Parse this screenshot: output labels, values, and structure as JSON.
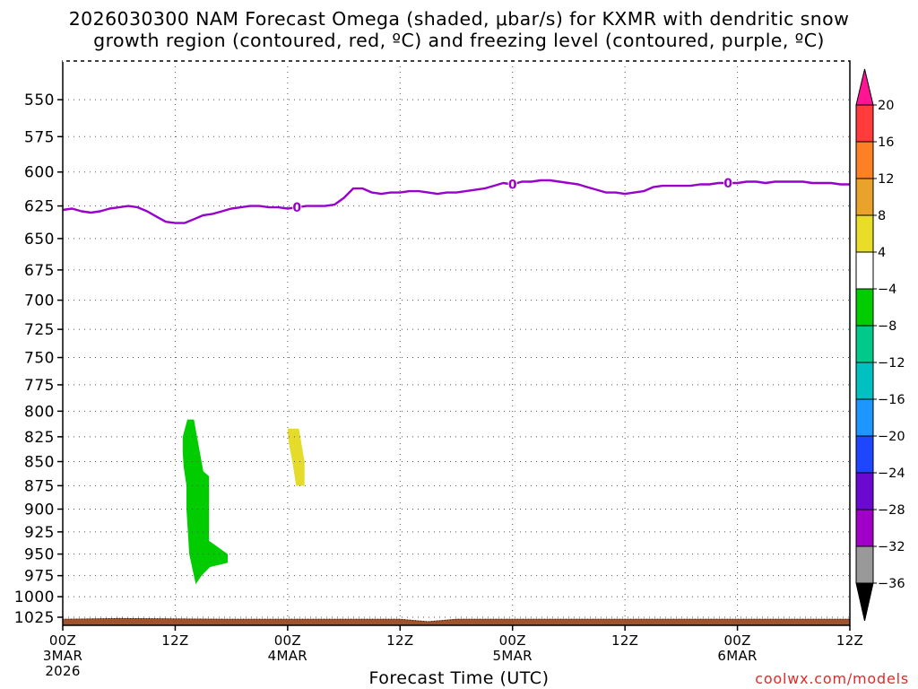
{
  "title": {
    "line1": "2026030300 NAM Forecast Omega (shaded, μbar/s) for KXMR with dendritic snow",
    "line2": "growth region (contoured, red, ºC) and freezing level (contoured, purple, ºC)"
  },
  "credit": "coolwx.com/models",
  "chart_data": {
    "type": "contour",
    "title": "2026030300 NAM Forecast Omega (shaded, μbar/s) for KXMR with dendritic snow growth region (contoured, red, ºC) and freezing level (contoured, purple, ºC)",
    "xlabel": "Forecast Time (UTC)",
    "ylabel": "",
    "xlim": [
      0,
      84
    ],
    "ylim_hpa": [
      525,
      1035
    ],
    "y_scale": "log-pressure (inverted)",
    "grid": true,
    "y_ticks": [
      550,
      575,
      600,
      625,
      650,
      675,
      700,
      725,
      750,
      775,
      800,
      825,
      850,
      875,
      900,
      925,
      950,
      975,
      1000,
      1025
    ],
    "x_ticks": [
      {
        "hour": 0,
        "lines": [
          "00Z",
          "3MAR",
          "2026"
        ]
      },
      {
        "hour": 12,
        "lines": [
          "12Z"
        ]
      },
      {
        "hour": 24,
        "lines": [
          "00Z",
          "4MAR"
        ]
      },
      {
        "hour": 36,
        "lines": [
          "12Z"
        ]
      },
      {
        "hour": 48,
        "lines": [
          "00Z",
          "5MAR"
        ]
      },
      {
        "hour": 60,
        "lines": [
          "12Z"
        ]
      },
      {
        "hour": 72,
        "lines": [
          "00Z",
          "6MAR"
        ]
      },
      {
        "hour": 84,
        "lines": [
          "12Z"
        ]
      }
    ],
    "freezing_level": {
      "name": "freezing level",
      "label": "0",
      "color": "#9900cc",
      "label_hours": [
        25,
        48,
        71
      ],
      "x": [
        0,
        1,
        2,
        3,
        4,
        5,
        6,
        7,
        8,
        9,
        10,
        11,
        12,
        13,
        14,
        15,
        16,
        17,
        18,
        19,
        20,
        21,
        22,
        23,
        24,
        25,
        26,
        27,
        28,
        29,
        30,
        31,
        32,
        33,
        34,
        35,
        36,
        37,
        38,
        39,
        40,
        41,
        42,
        43,
        44,
        45,
        46,
        47,
        48,
        49,
        50,
        51,
        52,
        53,
        54,
        55,
        56,
        57,
        58,
        59,
        60,
        61,
        62,
        63,
        64,
        65,
        66,
        67,
        68,
        69,
        70,
        71,
        72,
        73,
        74,
        75,
        76,
        77,
        78,
        79,
        80,
        81,
        82,
        83,
        84
      ],
      "y": [
        628,
        627,
        629,
        630,
        629,
        627,
        626,
        625,
        626,
        629,
        633,
        637,
        638,
        638,
        635,
        632,
        631,
        629,
        627,
        626,
        625,
        625,
        626,
        626,
        627,
        626,
        625,
        625,
        625,
        624,
        619,
        612,
        612,
        615,
        616,
        615,
        615,
        614,
        614,
        615,
        616,
        615,
        615,
        614,
        613,
        612,
        610,
        608,
        609,
        607,
        607,
        606,
        606,
        607,
        608,
        609,
        611,
        613,
        615,
        615,
        616,
        615,
        614,
        611,
        610,
        610,
        610,
        610,
        609,
        609,
        608,
        608,
        608,
        607,
        607,
        608,
        607,
        607,
        607,
        607,
        608,
        608,
        608,
        609,
        609
      ]
    },
    "omega_shading": [
      {
        "name": "omega -4 to -8",
        "color": "#00cc00",
        "hours": [
          12.8,
          13.3,
          14,
          15,
          15.6,
          15.6,
          17.6,
          17.6,
          15.7,
          14.8,
          14.2,
          14.0,
          13.5,
          13.2,
          13.2,
          12.9,
          12.8
        ],
        "pressure_hpa": [
          825,
          808,
          808,
          860,
          865,
          935,
          950,
          960,
          965,
          975,
          985,
          975,
          950,
          900,
          875,
          855,
          840
        ]
      },
      {
        "name": "omega 4 to 8",
        "color": "#e5db2a",
        "hours": [
          24,
          25.2,
          25.8,
          25.8,
          24.9,
          24.5,
          24.1,
          24
        ],
        "pressure_hpa": [
          817,
          817,
          850,
          875,
          875,
          850,
          830,
          820
        ]
      }
    ],
    "terrain": {
      "color": "#a0522d",
      "hours": [
        0,
        6,
        18,
        36,
        39,
        42,
        48,
        84
      ],
      "top_hpa": [
        1027,
        1026,
        1027,
        1027,
        1030,
        1027,
        1027,
        1027
      ]
    },
    "colorbar": {
      "labels": [
        "20",
        "16",
        "12",
        "8",
        "4",
        "-4",
        "-8",
        "-12",
        "-16",
        "-20",
        "-24",
        "-28",
        "-32",
        "-36"
      ],
      "colors": [
        "#ff1493",
        "#ff3b3b",
        "#ff7f24",
        "#e9a32a",
        "#e9dd2a",
        "#ffffff",
        "#00cc00",
        "#00c98a",
        "#00c0c0",
        "#1e96ff",
        "#1e46ff",
        "#6a0ad0",
        "#a000c8",
        "#999999",
        "#000000"
      ]
    }
  }
}
